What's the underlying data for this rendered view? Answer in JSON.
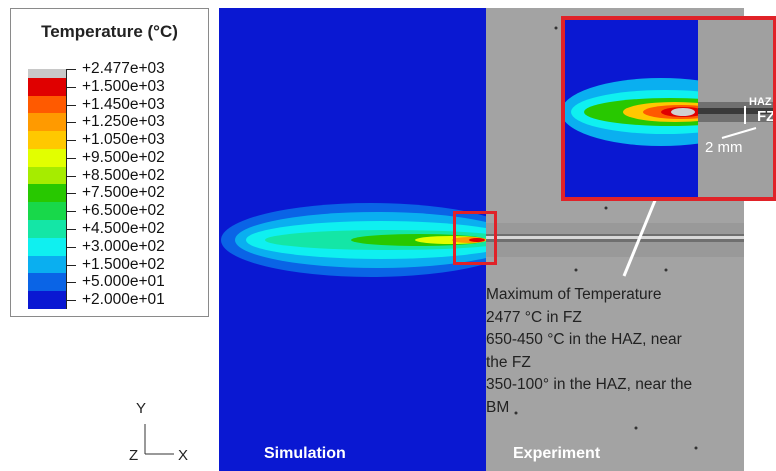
{
  "legend": {
    "title": "Temperature (°C)",
    "labels": [
      "+2.477e+03",
      "+1.500e+03",
      "+1.450e+03",
      "+1.250e+03",
      "+1.050e+03",
      "+9.500e+02",
      "+8.500e+02",
      "+7.500e+02",
      "+6.500e+02",
      "+4.500e+02",
      "+3.000e+02",
      "+1.500e+02",
      "+5.000e+01",
      "+2.000e+01"
    ],
    "colors": [
      "#c8c8c8",
      "#e00000",
      "#ff5a00",
      "#ff9a00",
      "#ffc800",
      "#e2ff00",
      "#a6ec00",
      "#28c800",
      "#18d84a",
      "#14e6a6",
      "#0ff0f0",
      "#0aaff0",
      "#0a64e6",
      "#0a18d2"
    ]
  },
  "panels": {
    "simulation": "Simulation",
    "experiment": "Experiment"
  },
  "inset": {
    "haz": "HAZ",
    "fz": "FZ",
    "scale": "2 mm"
  },
  "annotation": [
    "Maximum of Temperature",
    "2477 °C in FZ",
    "650-450 °C in the HAZ, near",
    "the FZ",
    "350-100° in the HAZ, near the",
    "BM"
  ],
  "axes": {
    "y": "Y",
    "z": "Z",
    "x": "X"
  }
}
